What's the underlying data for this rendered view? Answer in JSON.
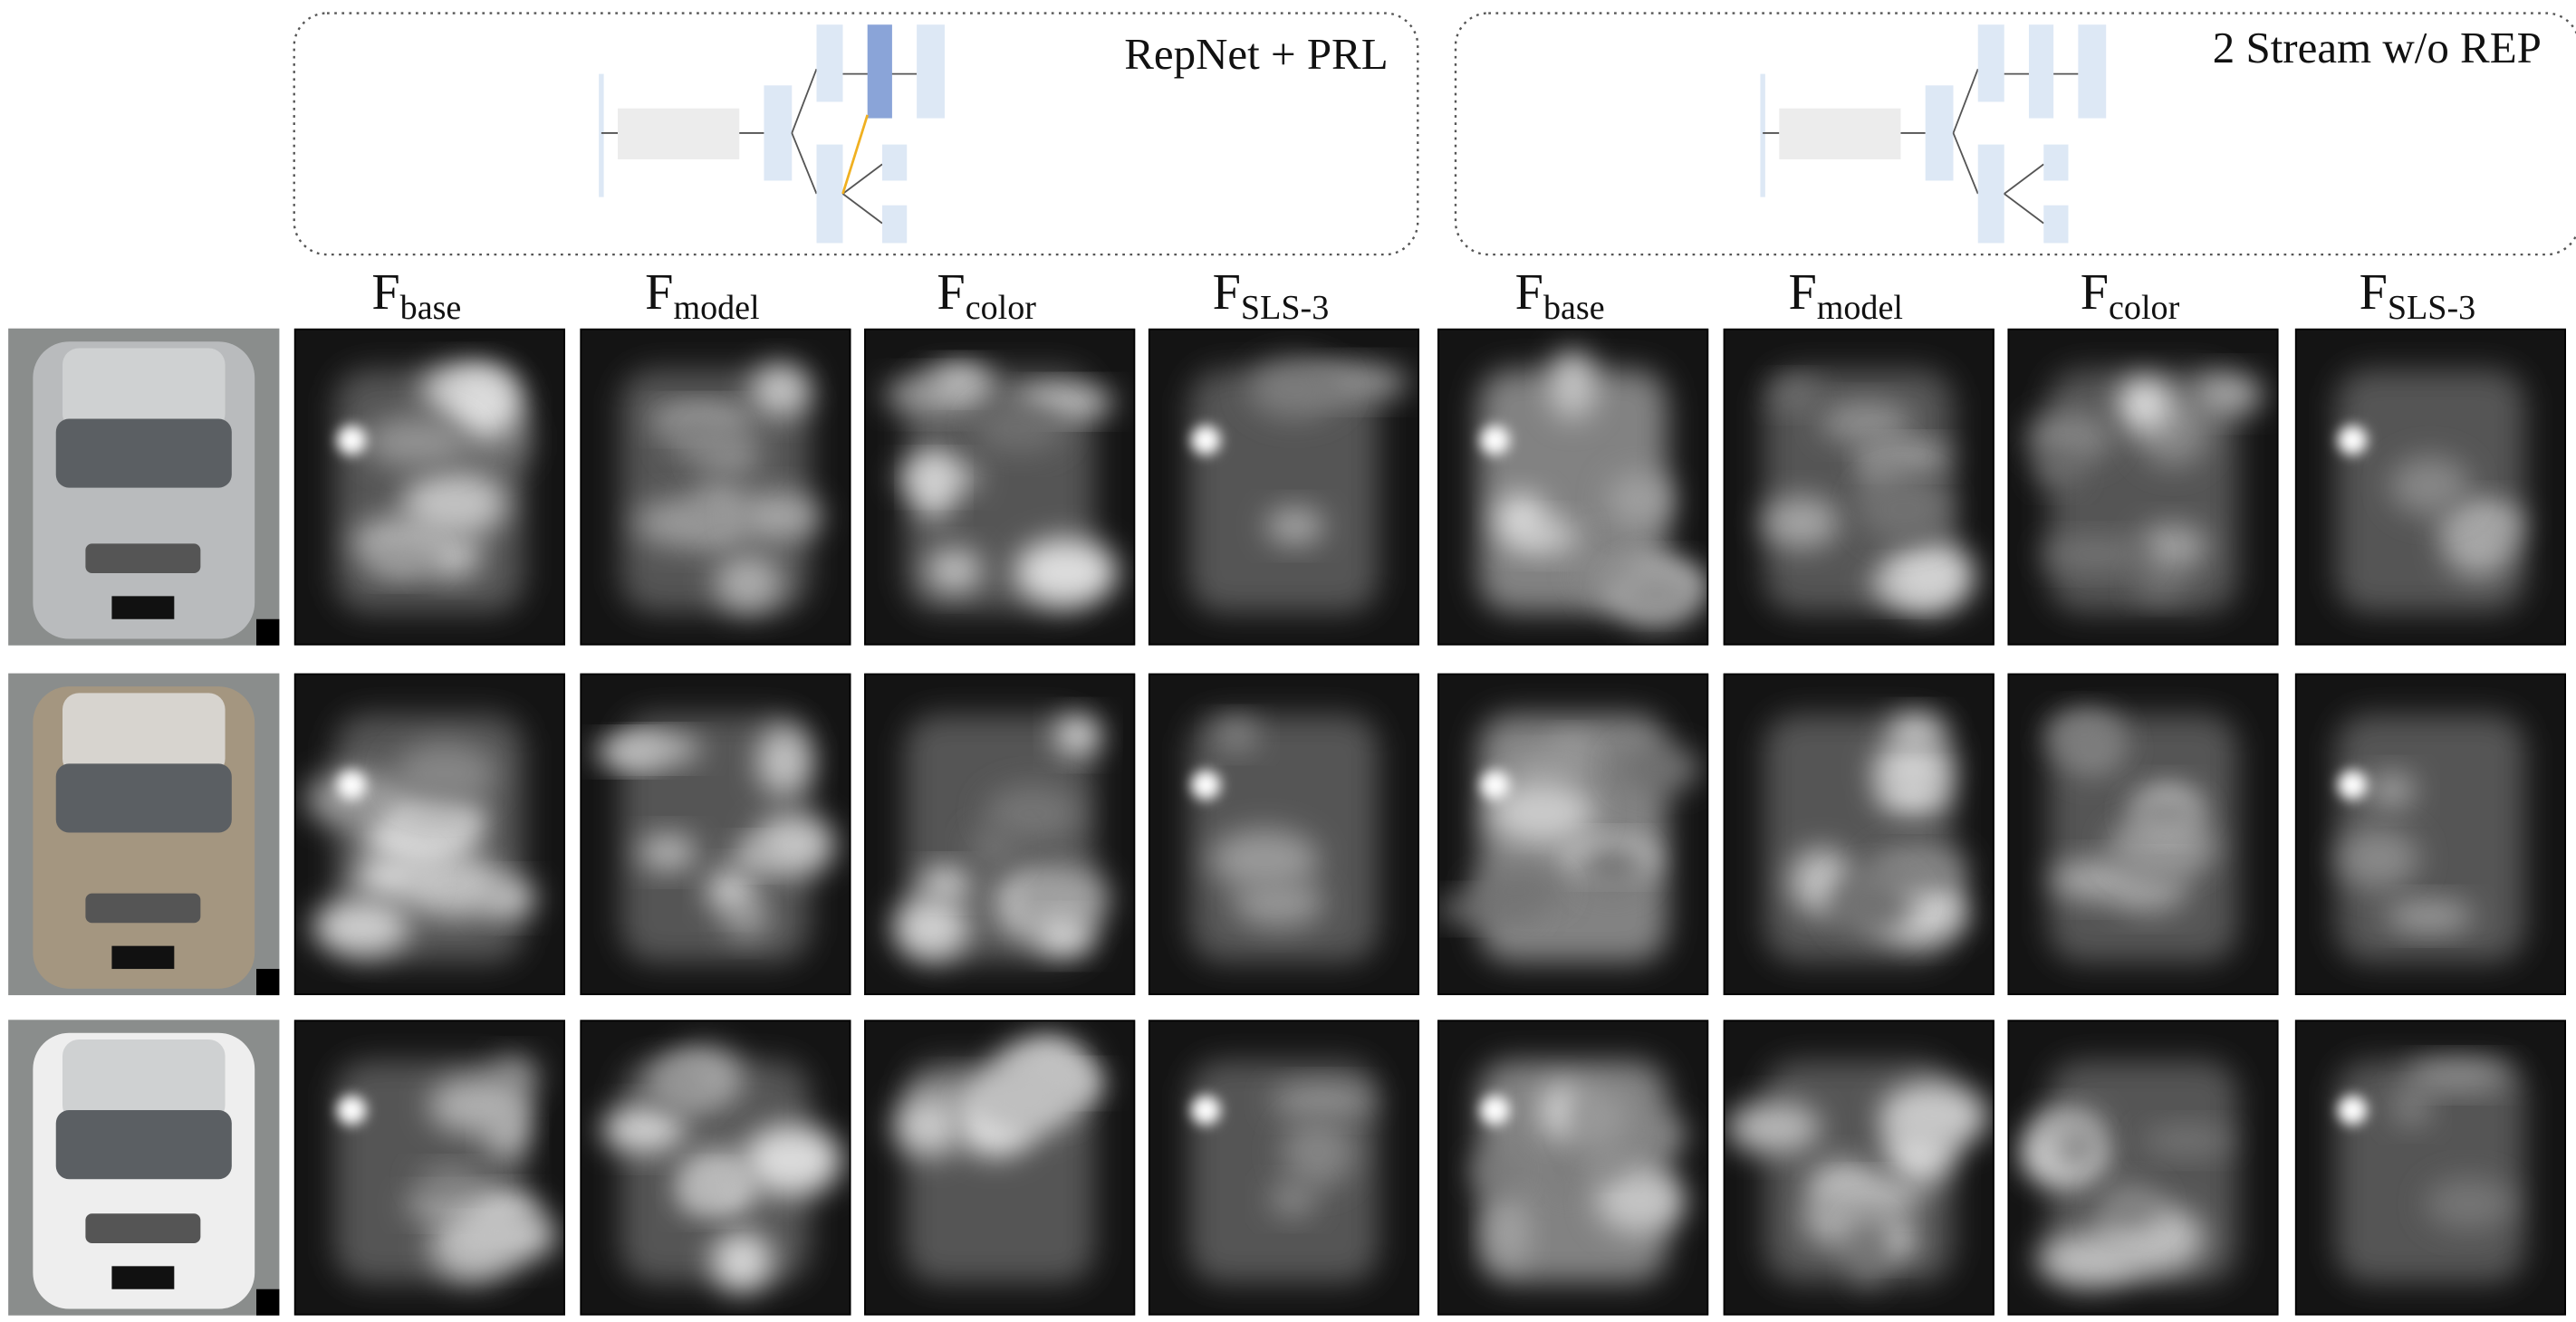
{
  "panels": [
    {
      "title": "RepNet + PRL"
    },
    {
      "title": "2 Stream w/o REP"
    }
  ],
  "columns": [
    {
      "main": "F",
      "sub": "base"
    },
    {
      "main": "F",
      "sub": "model"
    },
    {
      "main": "F",
      "sub": "color"
    },
    {
      "main": "F",
      "sub": "SLS-3"
    },
    {
      "main": "F",
      "sub": "base"
    },
    {
      "main": "F",
      "sub": "model"
    },
    {
      "main": "F",
      "sub": "color"
    },
    {
      "main": "F",
      "sub": "SLS-3"
    }
  ]
}
